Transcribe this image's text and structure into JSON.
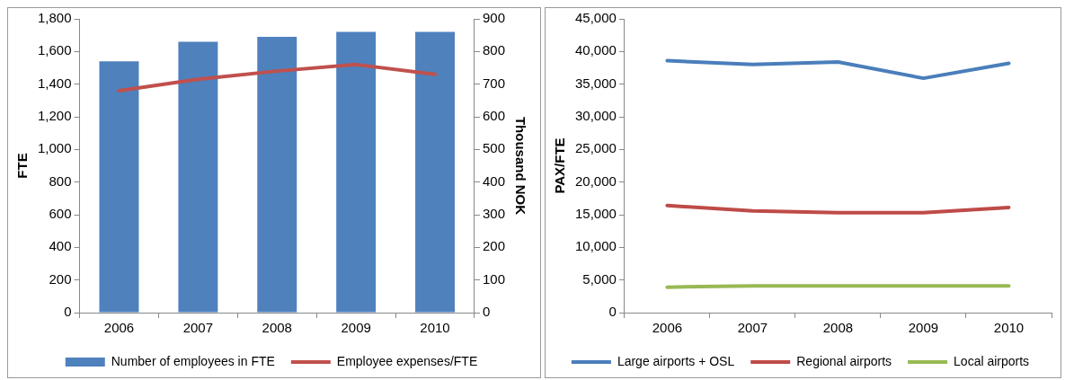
{
  "chart_data": [
    {
      "type": "bar",
      "categories": [
        "2006",
        "2007",
        "2008",
        "2009",
        "2010"
      ],
      "ylabel": "FTE",
      "y2label": "Thousand NOK",
      "series": [
        {
          "name": "Number of employees in FTE",
          "color": "#4f81bd",
          "values": [
            1540,
            1660,
            1690,
            1720,
            1720
          ]
        },
        {
          "type": "line",
          "name": "Employee expenses/FTE",
          "color": "#c0504d",
          "axis": "y2",
          "values": [
            680,
            715,
            740,
            760,
            730
          ]
        }
      ],
      "ylim": [
        0,
        1800
      ],
      "yticks": [
        0,
        200,
        400,
        600,
        800,
        {
          "value": 1000,
          "label": "1,000"
        },
        {
          "value": 1200,
          "label": "1,200"
        },
        {
          "value": 1400,
          "label": "1,400"
        },
        {
          "value": 1600,
          "label": "1,600"
        },
        {
          "value": 1800,
          "label": "1,800"
        }
      ],
      "y2lim": [
        0,
        900
      ],
      "y2ticks": [
        0,
        100,
        200,
        300,
        400,
        500,
        600,
        700,
        800,
        900
      ],
      "legend": "bottom",
      "grid": false,
      "marker": "none",
      "line_style": "solid"
    },
    {
      "type": "line",
      "categories": [
        "2006",
        "2007",
        "2008",
        "2009",
        "2010"
      ],
      "ylabel": "PAX/FTE",
      "series": [
        {
          "name": "Large airports + OSL",
          "color": "#4a7ebb",
          "values": [
            38600,
            38000,
            38400,
            35900,
            38200
          ]
        },
        {
          "name": "Regional airports",
          "color": "#be4b48",
          "values": [
            16400,
            15600,
            15300,
            15300,
            16100
          ]
        },
        {
          "name": "Local airports",
          "color": "#98b954",
          "values": [
            3900,
            4100,
            4100,
            4100,
            4100
          ]
        }
      ],
      "ylim": [
        0,
        45000
      ],
      "yticks": [
        0,
        {
          "value": 5000,
          "label": "5,000"
        },
        {
          "value": 10000,
          "label": "10,000"
        },
        {
          "value": 15000,
          "label": "15,000"
        },
        {
          "value": 20000,
          "label": "20,000"
        },
        {
          "value": 25000,
          "label": "25,000"
        },
        {
          "value": 30000,
          "label": "30,000"
        },
        {
          "value": 35000,
          "label": "35,000"
        },
        {
          "value": 40000,
          "label": "40,000"
        },
        {
          "value": 45000,
          "label": "45,000"
        }
      ],
      "legend": "bottom",
      "grid": false,
      "marker": "none",
      "line_style": "solid"
    }
  ]
}
